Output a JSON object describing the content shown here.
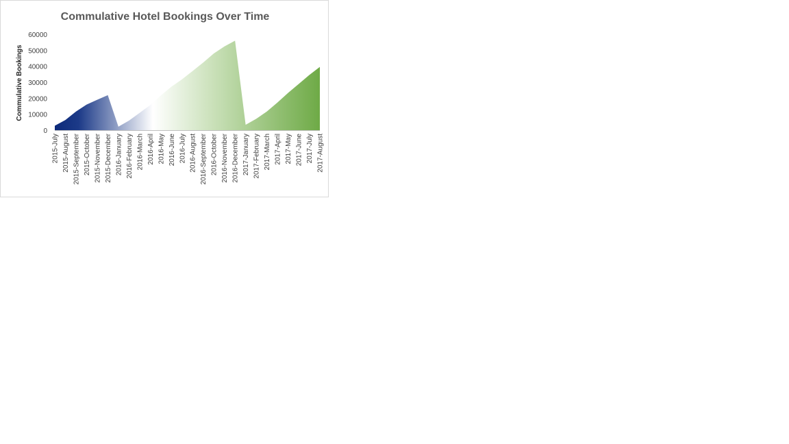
{
  "chart_data": {
    "type": "area",
    "title": "Commulative Hotel Bookings Over Time",
    "xlabel": "",
    "ylabel": "Commulative Bookings",
    "ylim": [
      0,
      60000
    ],
    "yticks": [
      "0",
      "10000",
      "20000",
      "30000",
      "40000",
      "50000",
      "60000"
    ],
    "grid": false,
    "legend": "none",
    "categories": [
      "2015-July",
      "2015-August",
      "2015-September",
      "2015-October",
      "2015-November",
      "2015-December",
      "2016-January",
      "2016-February",
      "2016-March",
      "2016-April",
      "2016-May",
      "2016-June",
      "2016-July",
      "2016-August",
      "2016-September",
      "2016-October",
      "2016-November",
      "2016-December",
      "2017-January",
      "2017-February",
      "2017-March",
      "2017-April",
      "2017-May",
      "2017-June",
      "2017-July",
      "2017-August"
    ],
    "series": [
      {
        "values": [
          2800,
          6400,
          11700,
          16000,
          19000,
          21900,
          2200,
          6000,
          10800,
          15700,
          21700,
          27200,
          31800,
          37000,
          42300,
          48000,
          52400,
          56000,
          3400,
          7100,
          11700,
          17300,
          23300,
          28900,
          34500,
          39600
        ]
      }
    ],
    "colors": {
      "gradient_start": "#0d2a7a",
      "gradient_mid": "#ffffff",
      "gradient_end": "#6eaa46",
      "axis": "#bfbfbf"
    }
  }
}
